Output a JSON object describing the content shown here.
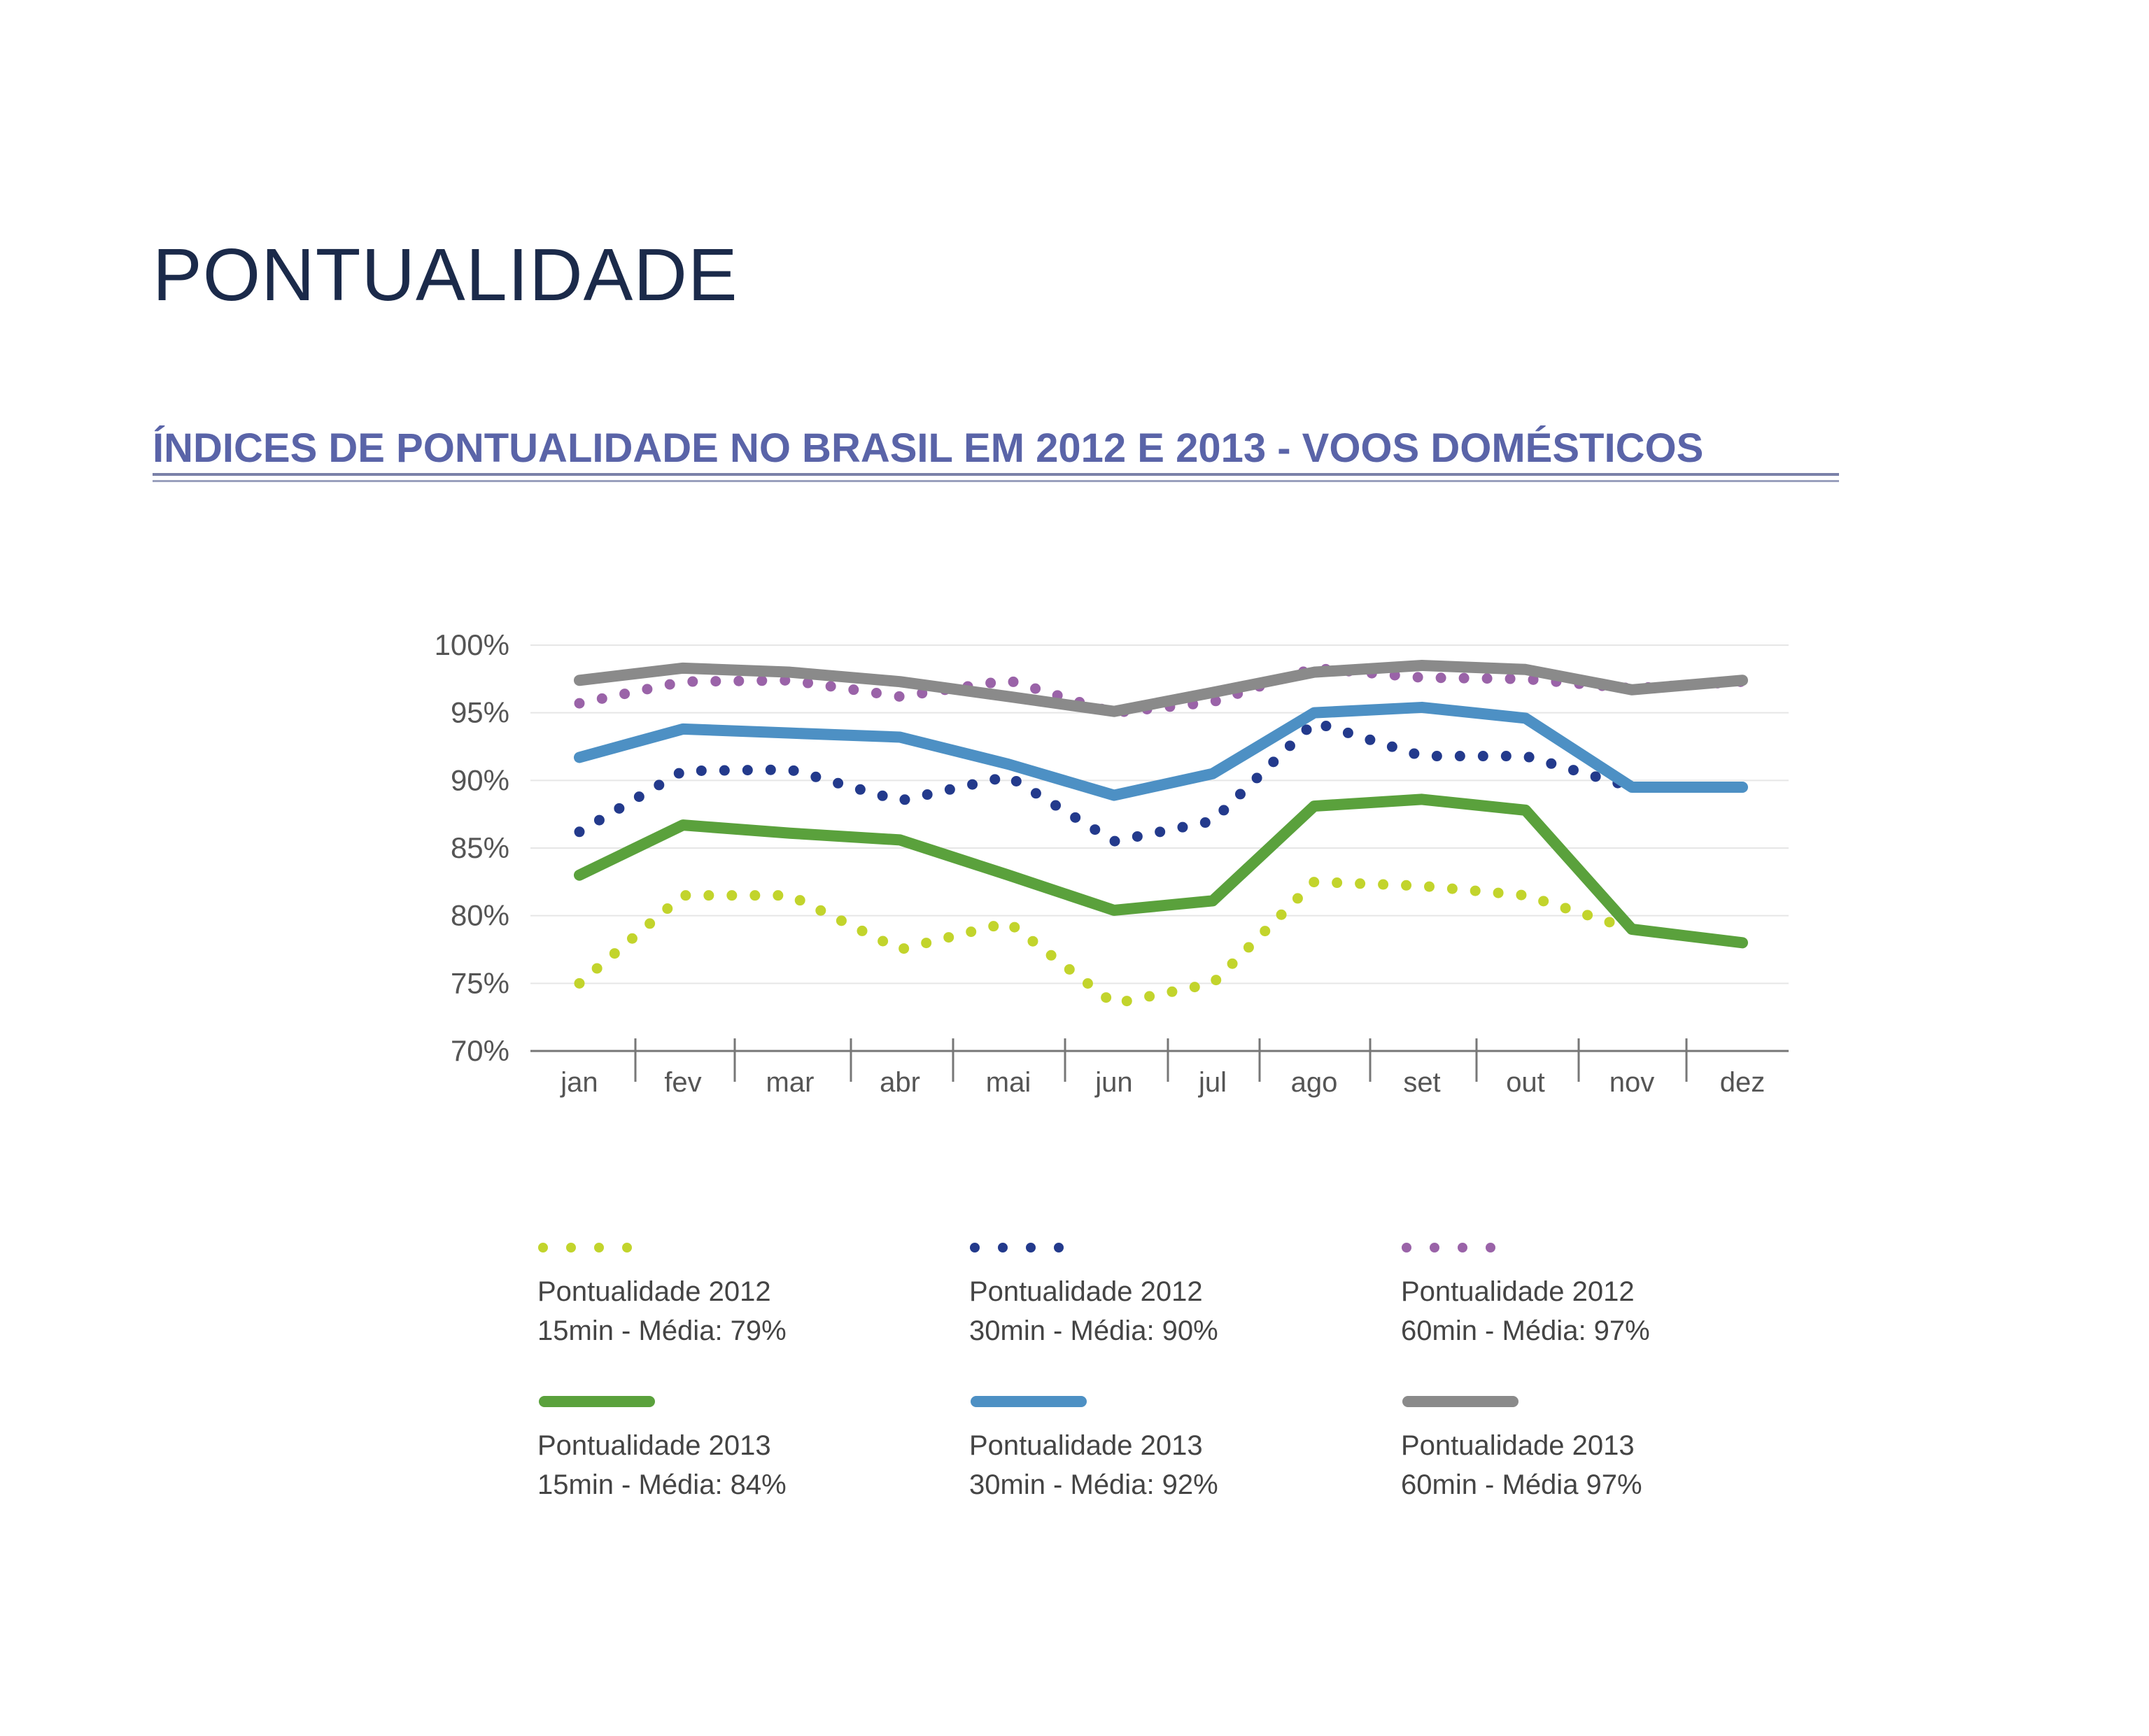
{
  "page": {
    "title": "PONTUALIDADE",
    "subtitle": "ÍNDICES DE PONTUALIDADE NO BRASIL EM 2012 E 2013 - VOOS DOMÉSTICOS"
  },
  "colors": {
    "title": "#1b2a4a",
    "subtitle": "#5a64a8",
    "axis_text": "#555555",
    "grid": "#e6e6e6"
  },
  "chart_data": {
    "type": "line",
    "title": "",
    "xlabel": "",
    "ylabel": "",
    "categories": [
      "jan",
      "fev",
      "mar",
      "abr",
      "mai",
      "jun",
      "jul",
      "ago",
      "set",
      "out",
      "nov",
      "dez"
    ],
    "ylim": [
      70,
      100
    ],
    "yticks": [
      70,
      75,
      80,
      85,
      90,
      95,
      100
    ],
    "ytick_labels": [
      "70%",
      "75%",
      "80%",
      "85%",
      "90%",
      "95%",
      "100%"
    ],
    "grid": true,
    "legend_position": "bottom",
    "series": [
      {
        "name": "Pontualidade 2012 15min",
        "legend_line1": "Pontualidade 2012",
        "legend_line2": "15min - Média: 79%",
        "style": "dotted",
        "color": "#c2d42c",
        "values": [
          75.0,
          81.5,
          81.5,
          77.5,
          79.5,
          73.5,
          75.0,
          82.5,
          82.2,
          81.5,
          79.0,
          78.0
        ]
      },
      {
        "name": "Pontualidade 2012 30min",
        "legend_line1": "Pontualidade 2012",
        "legend_line2": "30min - Média: 90%",
        "style": "dotted",
        "color": "#233a8c",
        "values": [
          86.2,
          90.7,
          90.8,
          88.5,
          90.3,
          85.5,
          87.0,
          94.3,
          91.8,
          91.8,
          89.5,
          89.5
        ]
      },
      {
        "name": "Pontualidade 2012 60min",
        "legend_line1": "Pontualidade 2012",
        "legend_line2": "60min - Média: 97%",
        "style": "dotted",
        "color": "#9a63a8",
        "values": [
          95.7,
          97.3,
          97.4,
          96.2,
          97.4,
          95.0,
          95.8,
          98.3,
          97.6,
          97.5,
          96.8,
          97.3
        ]
      },
      {
        "name": "Pontualidade 2013 15min",
        "legend_line1": "Pontualidade 2013",
        "legend_line2": "15min - Média: 84%",
        "style": "solid",
        "color": "#5aa13c",
        "values": [
          83.0,
          86.7,
          86.1,
          85.6,
          83.0,
          80.4,
          81.1,
          88.1,
          88.6,
          87.8,
          79.0,
          78.0
        ]
      },
      {
        "name": "Pontualidade 2013 30min",
        "legend_line1": "Pontualidade 2013",
        "legend_line2": "30min - Média: 92%",
        "style": "solid",
        "color": "#4d90c4",
        "values": [
          91.7,
          93.8,
          93.5,
          93.2,
          91.2,
          88.9,
          90.5,
          95.0,
          95.4,
          94.6,
          89.5,
          89.5
        ]
      },
      {
        "name": "Pontualidade 2013 60min",
        "legend_line1": "Pontualidade 2013",
        "legend_line2": "60min - Média 97%",
        "style": "solid",
        "color": "#8a8a8a",
        "values": [
          97.4,
          98.3,
          98.0,
          97.3,
          96.2,
          95.1,
          96.5,
          98.0,
          98.5,
          98.2,
          96.7,
          97.4
        ]
      }
    ]
  }
}
